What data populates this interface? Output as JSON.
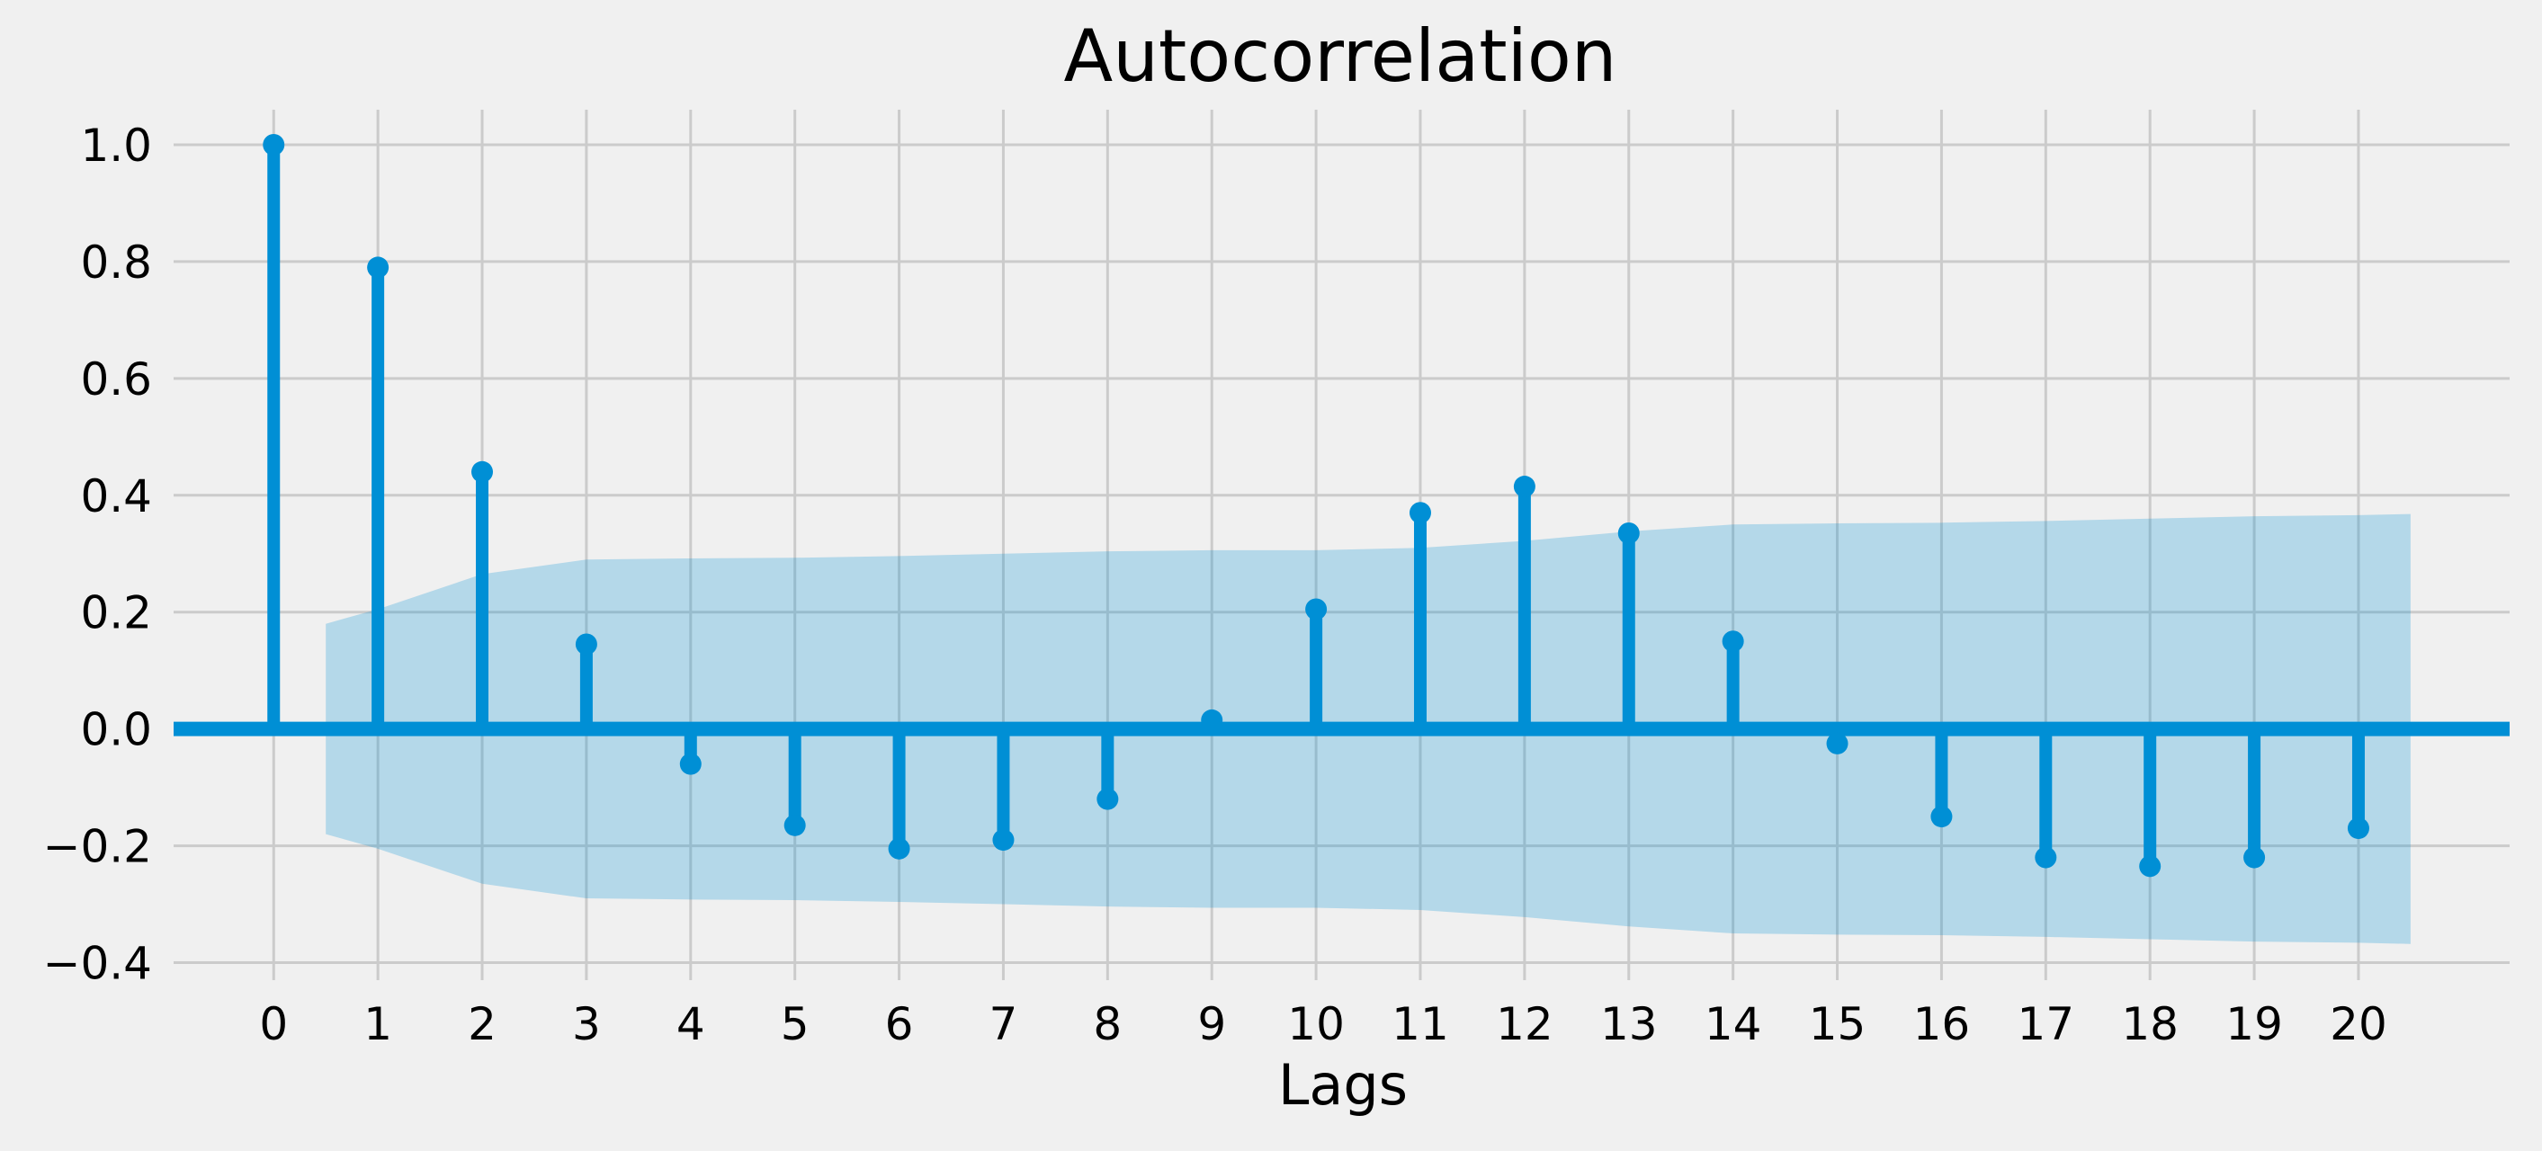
{
  "chart_data": {
    "type": "stem",
    "title": "Autocorrelation",
    "xlabel": "Lags",
    "ylabel": "",
    "x": [
      0,
      1,
      2,
      3,
      4,
      5,
      6,
      7,
      8,
      9,
      10,
      11,
      12,
      13,
      14,
      15,
      16,
      17,
      18,
      19,
      20
    ],
    "values": [
      1.0,
      0.79,
      0.44,
      0.145,
      -0.06,
      -0.165,
      -0.205,
      -0.19,
      -0.12,
      0.015,
      0.205,
      0.37,
      0.415,
      0.335,
      0.15,
      -0.025,
      -0.15,
      -0.22,
      -0.235,
      -0.22,
      -0.17
    ],
    "confidence_band": {
      "x": [
        0.5,
        1,
        2,
        3,
        4,
        5,
        6,
        7,
        8,
        9,
        10,
        11,
        12,
        13,
        14,
        15,
        16,
        17,
        18,
        19,
        20,
        20.5
      ],
      "half_width": [
        0.18,
        0.205,
        0.265,
        0.29,
        0.292,
        0.293,
        0.296,
        0.3,
        0.304,
        0.306,
        0.306,
        0.31,
        0.322,
        0.338,
        0.35,
        0.352,
        0.353,
        0.356,
        0.36,
        0.364,
        0.366,
        0.368
      ]
    },
    "xticks": [
      "0",
      "1",
      "2",
      "3",
      "4",
      "5",
      "6",
      "7",
      "8",
      "9",
      "10",
      "11",
      "12",
      "13",
      "14",
      "15",
      "16",
      "17",
      "18",
      "19",
      "20"
    ],
    "yticks": [
      "1.0",
      "0.8",
      "0.6",
      "0.4",
      "0.2",
      "0.0",
      "−0.2",
      "−0.4"
    ],
    "ytick_values": [
      1.0,
      0.8,
      0.6,
      0.4,
      0.2,
      0.0,
      -0.2,
      -0.4
    ],
    "xlim": [
      -0.96,
      21.45
    ],
    "ylim": [
      -0.43,
      1.06
    ],
    "grid": true,
    "colors": {
      "series": "#008fd5",
      "band": "#b3d7ea",
      "grid": "#cbcbcb",
      "background": "#f0f0f0"
    }
  }
}
